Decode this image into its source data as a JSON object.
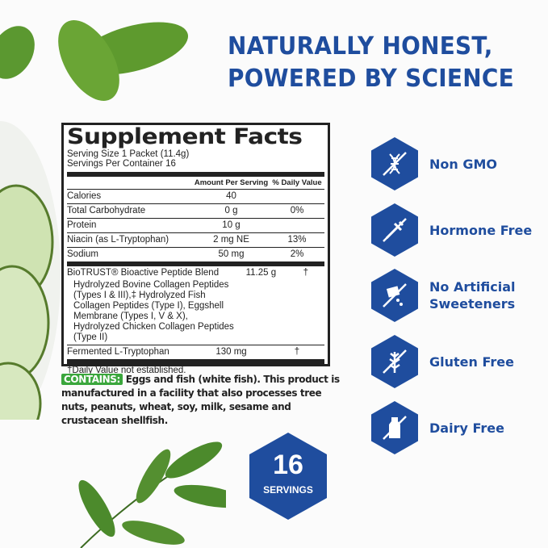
{
  "headline": {
    "line1": "NATURALLY HONEST,",
    "line2": "POWERED BY SCIENCE"
  },
  "label": {
    "title": "Supplement Facts",
    "serving_size": "Serving Size 1 Packet (11.4g)",
    "servings_per_container": "Servings Per Container 16",
    "col_amount": "Amount Per Serving",
    "col_dv": "% Daily Value",
    "rows": [
      {
        "name": "Calories",
        "amount": "40",
        "dv": ""
      },
      {
        "name": "Total Carbohydrate",
        "amount": "0 g",
        "dv": "0%"
      },
      {
        "name": "Protein",
        "amount": "10 g",
        "dv": ""
      },
      {
        "name": "Niacin (as L-Tryptophan)",
        "amount": "2 mg NE",
        "dv": "13%"
      },
      {
        "name": "Sodium",
        "amount": "50 mg",
        "dv": "2%"
      }
    ],
    "blend": {
      "name": "BioTRUST® Bioactive Peptide Blend",
      "amount": "11.25 g",
      "dv": "†",
      "detail": "Hydrolyzed Bovine Collagen Peptides (Types I & III),‡ Hydrolyzed Fish Collagen Peptides (Type I), Eggshell Membrane (Types I, V & X), Hydrolyzed Chicken Collagen Peptides (Type II)"
    },
    "fermented": {
      "name": "Fermented L-Tryptophan",
      "amount": "130 mg",
      "dv": "†"
    },
    "footnote": "†Daily Value not established."
  },
  "contains": {
    "tag": "CONTAINS:",
    "text": "Eggs and fish (white fish). This product is manufactured in a facility that also processes tree nuts, peanuts, wheat, soy, milk, sesame and crustacean shellfish."
  },
  "badge": {
    "number": "16",
    "label": "SERVINGS"
  },
  "features": [
    {
      "icon": "dna-crossed-icon",
      "line1": "Non GMO",
      "line2": ""
    },
    {
      "icon": "syringe-crossed-icon",
      "line1": "Hormone Free",
      "line2": ""
    },
    {
      "icon": "sweetener-crossed-icon",
      "line1": "No Artificial",
      "line2": "Sweeteners"
    },
    {
      "icon": "wheat-crossed-icon",
      "line1": "Gluten Free",
      "line2": ""
    },
    {
      "icon": "milk-bottle-crossed-icon",
      "line1": "Dairy Free",
      "line2": ""
    }
  ],
  "colors": {
    "brand_blue": "#1f4d9e",
    "contains_green": "#3aa63c",
    "leaf_green": "#4c8a2c"
  }
}
